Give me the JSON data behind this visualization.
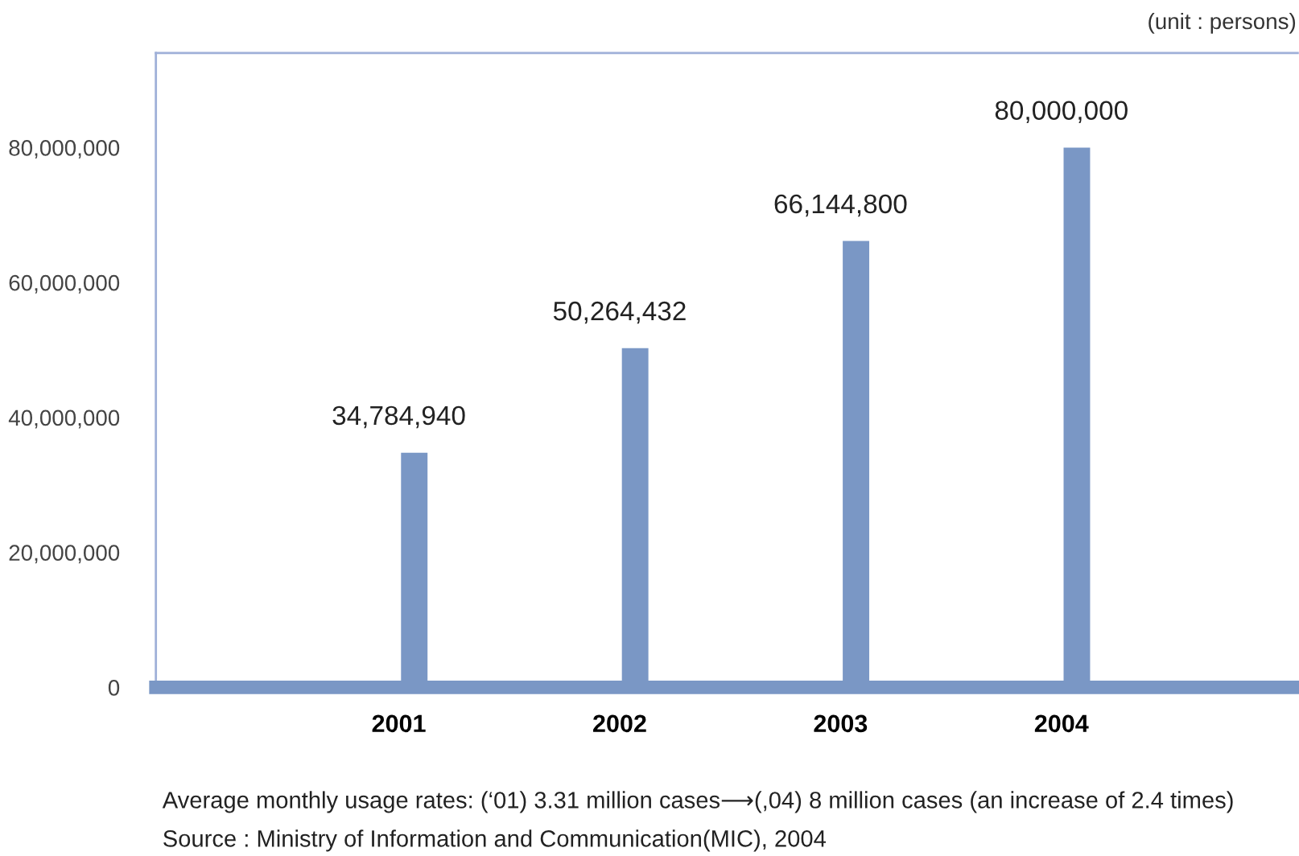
{
  "chart_data": {
    "type": "bar",
    "subtitle": "(unit : persons)",
    "categories": [
      "2001",
      "2002",
      "2003",
      "2004"
    ],
    "values": [
      34784940,
      50264432,
      66144800,
      80000000
    ],
    "color": "#7a97c5",
    "ylim": [
      0,
      94000000
    ],
    "yticks": [
      {
        "value": 0,
        "label": "0"
      },
      {
        "value": 20000000,
        "label": "20,000,000"
      },
      {
        "value": 40000000,
        "label": "40,000,000"
      },
      {
        "value": 60000000,
        "label": "60,000,000"
      },
      {
        "value": 80000000,
        "label": "80,000,000"
      }
    ],
    "value_labels": [
      "34,784,940",
      "50,264,432",
      "66,144,800",
      "80,000,000"
    ],
    "grid": false,
    "annotations": [
      "Average monthly usage rates: (‘01) 3.31 million cases⟶(,04) 8 million cases (an increase of 2.4 times)",
      "Source : Ministry of Information and Communication(MIC), 2004"
    ]
  }
}
